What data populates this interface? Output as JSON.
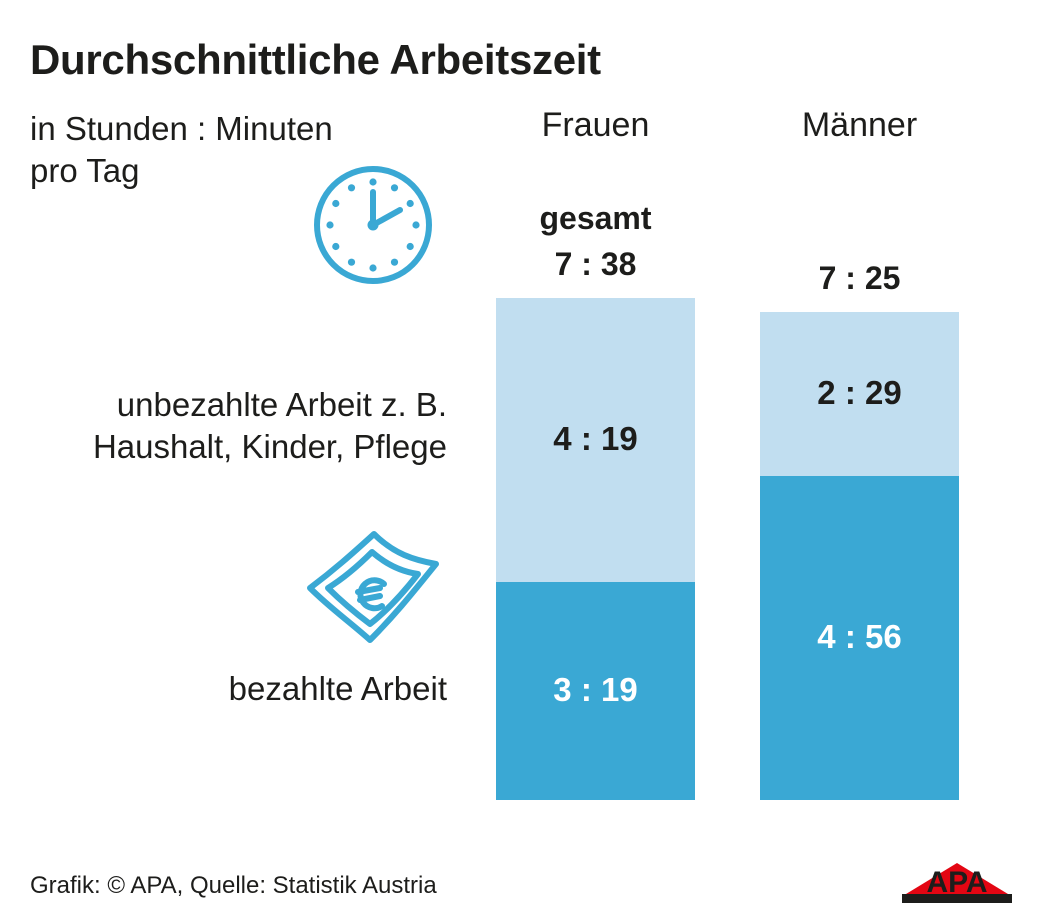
{
  "header": {
    "title": "Durchschnittliche Arbeitszeit",
    "unit_line1": "in Stunden : Minuten",
    "unit_line2": "pro Tag"
  },
  "labels": {
    "unpaid_line1": "unbezahlte Arbeit z. B.",
    "unpaid_line2": "Haushalt, Kinder, Pflege",
    "paid": "bezahlte Arbeit",
    "total": "gesamt"
  },
  "footer": {
    "credit": "Grafik: © APA, Quelle: Statistik Austria",
    "logo_text": "APA"
  },
  "colors": {
    "paid": "#3aa8d4",
    "unpaid": "#c1def0",
    "icon": "#3aa8d4",
    "logo": "#e30613"
  },
  "chart_data": {
    "type": "bar",
    "stacked": true,
    "unit": "Stunden:Minuten pro Tag",
    "categories": [
      "Frauen",
      "Männer"
    ],
    "series": [
      {
        "name": "bezahlte Arbeit",
        "values": [
          199,
          296
        ],
        "labels": [
          "3 : 19",
          "4 : 56"
        ]
      },
      {
        "name": "unbezahlte Arbeit z. B. Haushalt, Kinder, Pflege",
        "values": [
          259,
          149
        ],
        "labels": [
          "4 : 19",
          "2 : 29"
        ]
      }
    ],
    "totals": {
      "values": [
        458,
        445
      ],
      "labels": [
        "7 : 38",
        "7 : 25"
      ]
    },
    "title": "Durchschnittliche Arbeitszeit",
    "ylim": [
      0,
      458
    ]
  }
}
